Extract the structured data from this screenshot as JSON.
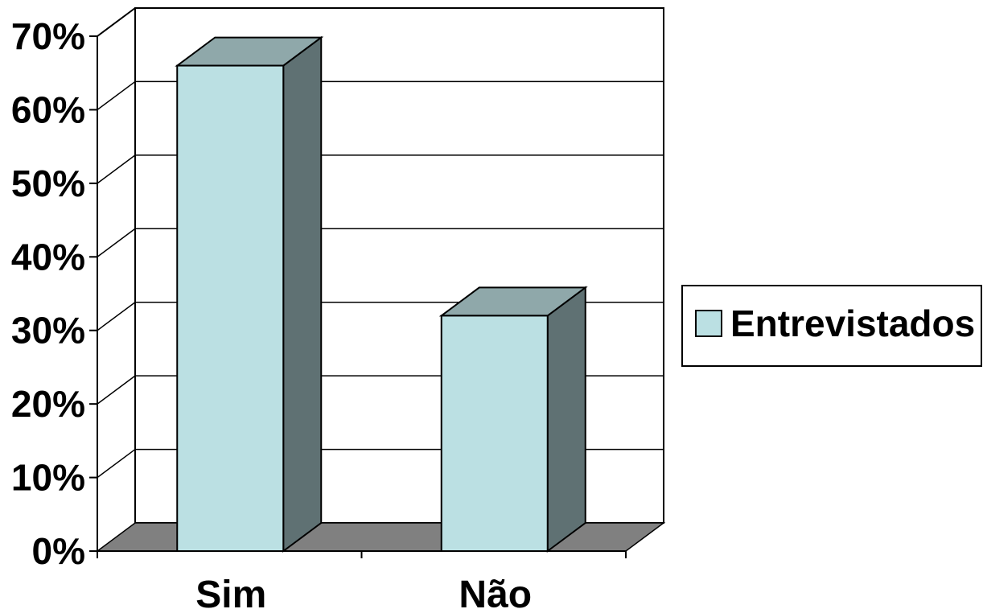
{
  "chart_data": {
    "type": "bar",
    "categories": [
      "Sim",
      "Não"
    ],
    "series": [
      {
        "name": "Entrevistados",
        "values": [
          66,
          32
        ]
      }
    ],
    "ylim": [
      0,
      70
    ],
    "yticks": [
      "0%",
      "10%",
      "20%",
      "30%",
      "40%",
      "50%",
      "60%",
      "70%"
    ],
    "grid": true,
    "legend_position": "right",
    "three_d": true,
    "colors": {
      "bar_front": "#BBE0E3",
      "bar_top": "#8FA8AA",
      "bar_side": "#5F7173",
      "floor": "#808080",
      "grid": "#000000"
    }
  }
}
